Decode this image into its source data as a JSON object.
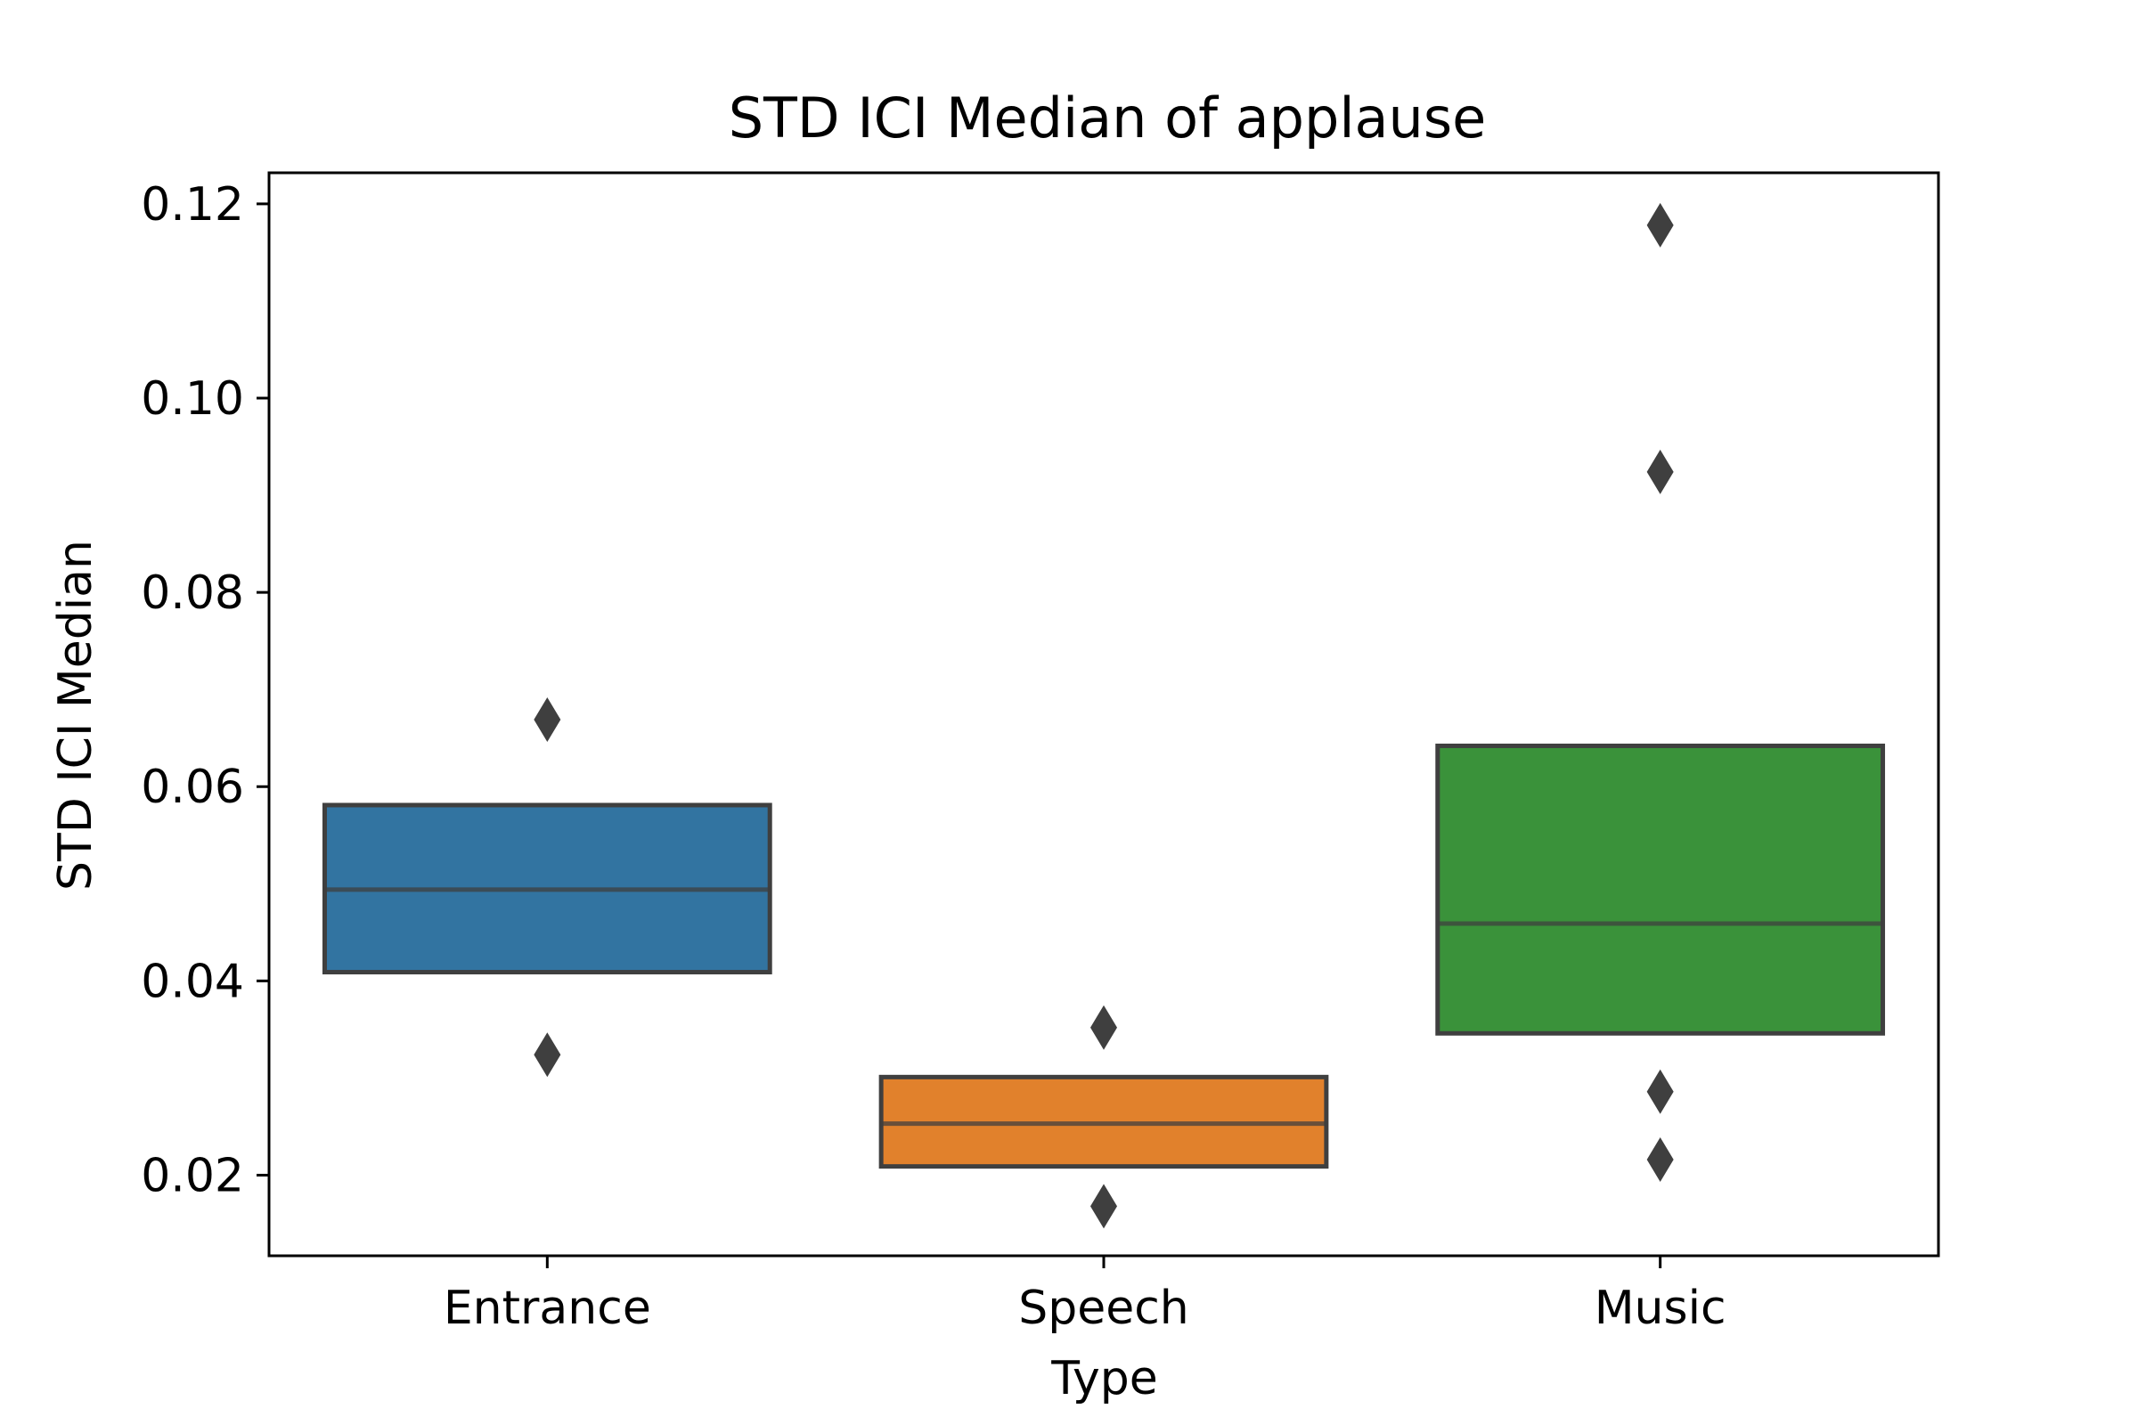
{
  "chart_data": {
    "type": "boxen",
    "title": "STD ICI Median of applause",
    "xlabel": "Type",
    "ylabel": "STD ICI Median",
    "ylim": [
      0.0117,
      0.1232
    ],
    "yticks": [
      "0.02",
      "0.04",
      "0.06",
      "0.08",
      "0.10",
      "0.12"
    ],
    "ytick_values": [
      0.02,
      0.04,
      0.06,
      0.08,
      0.1,
      0.12
    ],
    "categories": [
      "Entrance",
      "Speech",
      "Music"
    ],
    "boxes": [
      {
        "category": "Entrance",
        "q1": 0.0409,
        "median": 0.0494,
        "q3": 0.0581,
        "outliers": [
          0.0324,
          0.0669
        ],
        "color": "#3274a1"
      },
      {
        "category": "Speech",
        "q1": 0.0209,
        "median": 0.0253,
        "q3": 0.0301,
        "outliers": [
          0.0168,
          0.0352
        ],
        "color": "#e1812c"
      },
      {
        "category": "Music",
        "q1": 0.0346,
        "median": 0.0459,
        "q3": 0.0642,
        "outliers": [
          0.0216,
          0.0286,
          0.0924,
          0.1178
        ],
        "color": "#3a923a"
      }
    ],
    "edge_color": "#3f3f3f",
    "grid": false,
    "legend": "none"
  }
}
